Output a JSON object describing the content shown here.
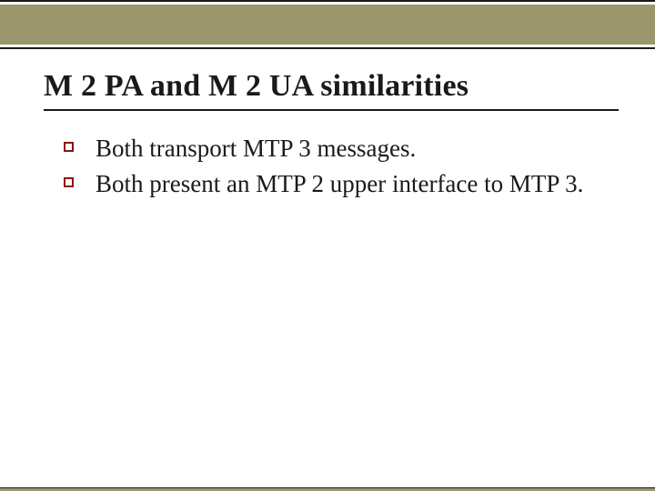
{
  "colors": {
    "band": "#9b966c",
    "marker": "#8a1515",
    "text": "#1a1a1a",
    "background": "#ffffff"
  },
  "title": "M 2 PA and M 2 UA similarities",
  "bullets": [
    "Both transport MTP 3 messages.",
    "Both present an MTP 2 upper interface to MTP 3."
  ]
}
